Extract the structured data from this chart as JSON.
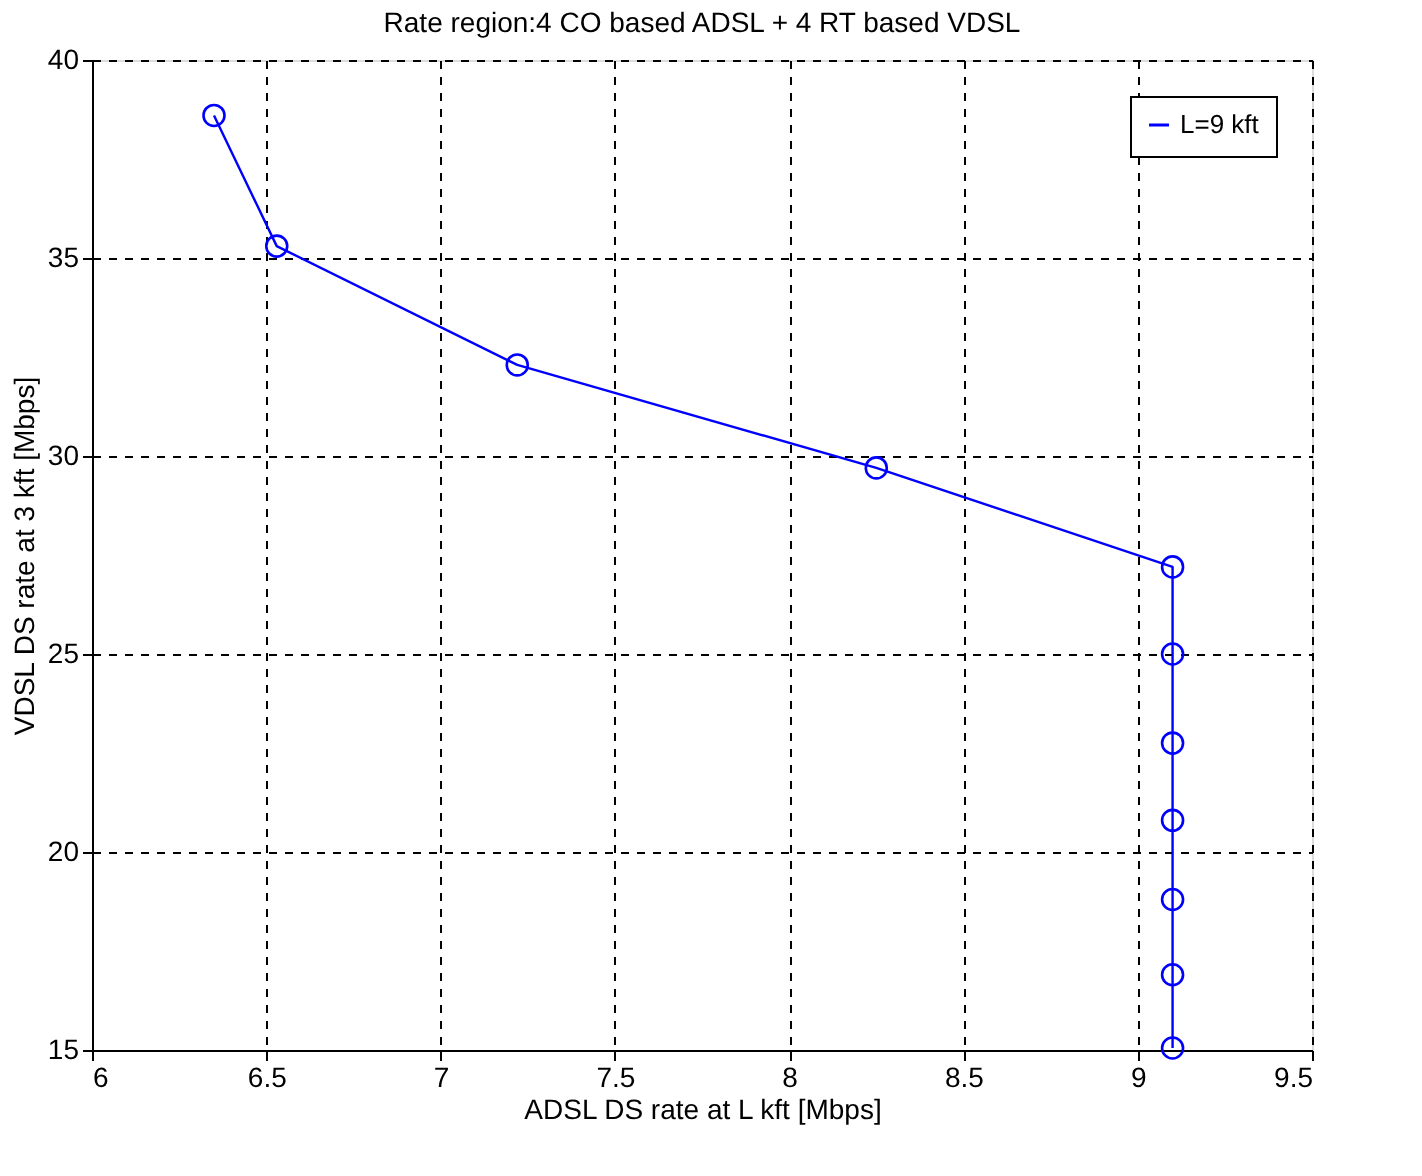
{
  "chart_data": {
    "type": "line",
    "title": "Rate region:4 CO based ADSL + 4 RT based VDSL",
    "xlabel": "ADSL DS rate at L kft [Mbps]",
    "ylabel": "VDSL DS rate at 3 kft [Mbps]",
    "x": [
      6.35,
      6.53,
      7.22,
      8.25,
      9.1,
      9.1,
      9.1,
      9.1,
      9.1,
      9.1,
      9.1
    ],
    "series": [
      {
        "name": "L=9 kft",
        "color": "#0000ff",
        "values": [
          38.6,
          35.3,
          32.3,
          29.7,
          27.2,
          25.0,
          22.75,
          20.8,
          18.8,
          16.9,
          15.05
        ]
      }
    ],
    "xlim": [
      6,
      9.5
    ],
    "xticks": [
      6,
      6.5,
      7,
      7.5,
      8,
      8.5,
      9,
      9.5
    ],
    "ylim": [
      15,
      40
    ],
    "yticks": [
      15,
      20,
      25,
      30,
      35,
      40
    ],
    "grid": true,
    "legend": "top right",
    "marker": "circle",
    "line_style": "solid"
  }
}
